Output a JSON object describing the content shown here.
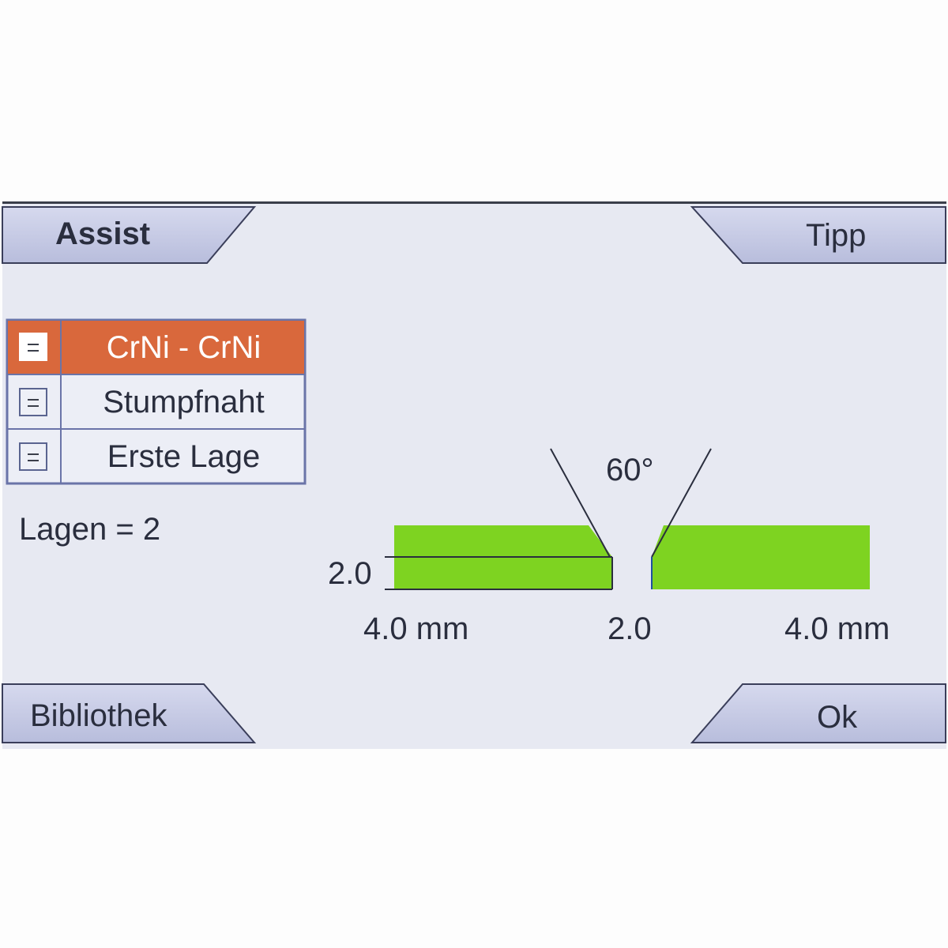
{
  "header": {
    "left_button": "Assist",
    "right_button": "Tipp"
  },
  "footer": {
    "left_button": "Bibliothek",
    "right_button": "Ok"
  },
  "list": {
    "items": [
      {
        "label": "CrNi - CrNi",
        "selected": true
      },
      {
        "label": "Stumpfnaht",
        "selected": false
      },
      {
        "label": "Erste Lage",
        "selected": false
      }
    ]
  },
  "layers_text": "Lagen = 2",
  "joint": {
    "angle": "60°",
    "root_face": "2.0",
    "left_thickness": "4.0 mm",
    "gap": "2.0",
    "right_thickness": "4.0 mm"
  },
  "colors": {
    "accent": "#d9683c",
    "button": "#c3c7e2",
    "plate": "#7ed321",
    "background": "#e7e9f2"
  }
}
